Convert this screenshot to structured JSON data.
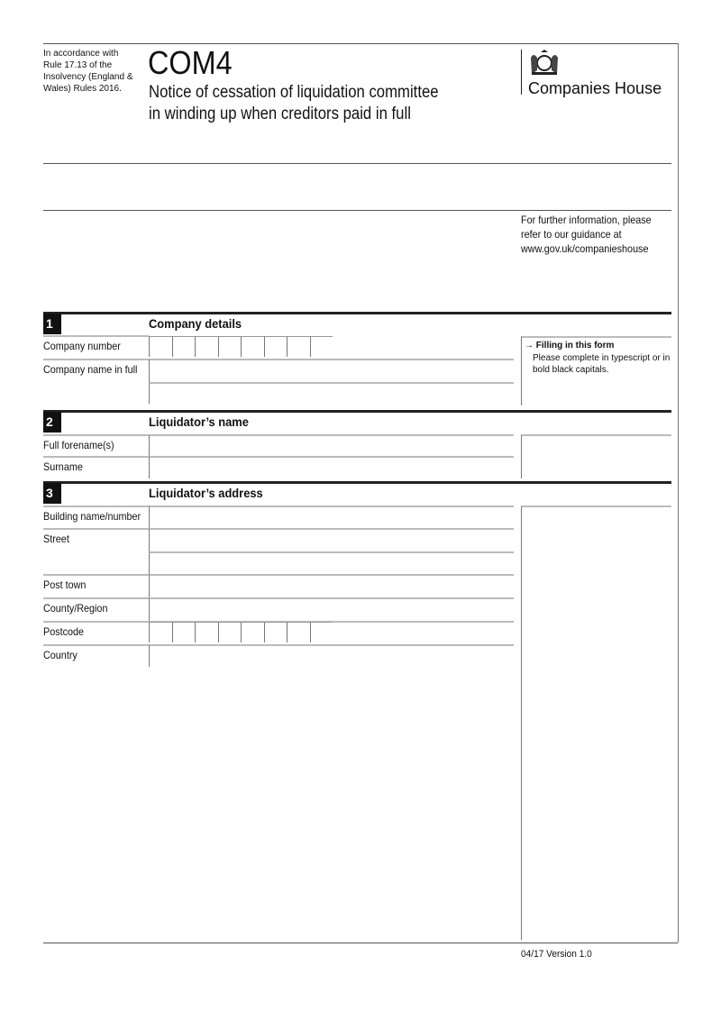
{
  "header": {
    "legal_note": [
      "In accordance with",
      "Rule 17.13 of the",
      "Insolvency (England &",
      "Wales) Rules 2016."
    ],
    "form_code": "COM4",
    "form_title": [
      "Notice of cessation of liquidation committee",
      "in winding up when creditors paid in full"
    ],
    "brand": "Companies House",
    "guidance": [
      "For further information, please",
      "refer to our guidance at",
      "www.gov.uk/companieshouse"
    ]
  },
  "sections": [
    {
      "number": "1",
      "title": "Company details",
      "fields": {
        "company_number": "Company number",
        "company_name": "Company name in full"
      }
    },
    {
      "number": "2",
      "title": "Liquidator’s name",
      "fields": {
        "forenames": "Full forename(s)",
        "surname": "Surname"
      }
    },
    {
      "number": "3",
      "title": "Liquidator’s address",
      "fields": {
        "building": "Building name/number",
        "street": "Street",
        "post_town": "Post town",
        "county": "County/Region",
        "postcode": "Postcode",
        "country": "Country"
      }
    }
  ],
  "help": {
    "title": "Filling in this form",
    "text": [
      "Please complete in typescript or in",
      "bold black capitals."
    ],
    "icon": "arrow-right-icon"
  },
  "footer": {
    "version": "04/17 Version 1.0"
  }
}
